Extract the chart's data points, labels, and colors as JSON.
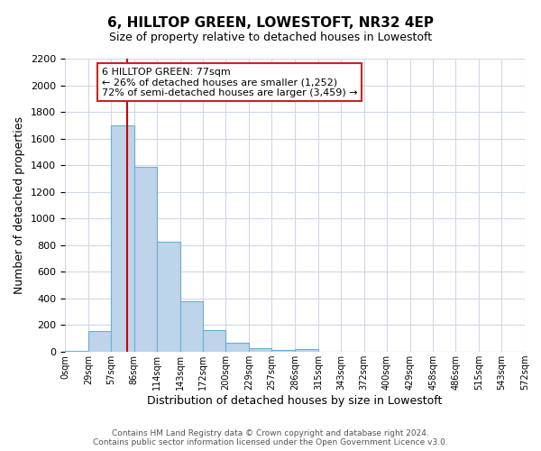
{
  "title": "6, HILLTOP GREEN, LOWESTOFT, NR32 4EP",
  "subtitle": "Size of property relative to detached houses in Lowestoft",
  "xlabel": "Distribution of detached houses by size in Lowestoft",
  "ylabel": "Number of detached properties",
  "bar_edges": [
    0,
    29,
    57,
    86,
    114,
    143,
    172,
    200,
    229,
    257,
    286,
    315,
    343,
    372,
    400,
    429,
    458,
    486,
    515,
    543,
    572
  ],
  "bar_heights": [
    10,
    155,
    1700,
    1390,
    825,
    380,
    160,
    65,
    25,
    15,
    20,
    0,
    0,
    0,
    0,
    0,
    0,
    0,
    0,
    0
  ],
  "bar_color": "#bdd4ea",
  "bar_edge_color": "#6baed6",
  "vline_x": 77,
  "vline_color": "#cc0000",
  "ylim": [
    0,
    2200
  ],
  "yticks": [
    0,
    200,
    400,
    600,
    800,
    1000,
    1200,
    1400,
    1600,
    1800,
    2000,
    2200
  ],
  "xtick_labels": [
    "0sqm",
    "29sqm",
    "57sqm",
    "86sqm",
    "114sqm",
    "143sqm",
    "172sqm",
    "200sqm",
    "229sqm",
    "257sqm",
    "286sqm",
    "315sqm",
    "343sqm",
    "372sqm",
    "400sqm",
    "429sqm",
    "458sqm",
    "486sqm",
    "515sqm",
    "543sqm",
    "572sqm"
  ],
  "annotation_title": "6 HILLTOP GREEN: 77sqm",
  "annotation_line1": "← 26% of detached houses are smaller (1,252)",
  "annotation_line2": "72% of semi-detached houses are larger (3,459) →",
  "footer1": "Contains HM Land Registry data © Crown copyright and database right 2024.",
  "footer2": "Contains public sector information licensed under the Open Government Licence v3.0.",
  "grid_color": "#d0d8e8",
  "background_color": "#ffffff"
}
